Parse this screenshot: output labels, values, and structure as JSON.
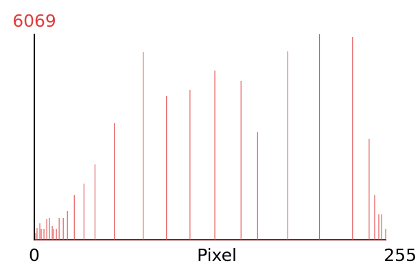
{
  "chart_data": {
    "type": "spike",
    "xlabel": "Pixel",
    "x": [
      1,
      2,
      4,
      5,
      7,
      9,
      11,
      13,
      14,
      16,
      18,
      21,
      24,
      29,
      36,
      44,
      58,
      79,
      96,
      113,
      131,
      150,
      162,
      184,
      207,
      231,
      243,
      247,
      250,
      252,
      255
    ],
    "values": [
      202,
      344,
      486,
      324,
      324,
      607,
      647,
      405,
      324,
      324,
      647,
      647,
      850,
      1315,
      1659,
      2225,
      3439,
      5543,
      4248,
      4430,
      4997,
      4693,
      3176,
      5563,
      6069,
      5988,
      2974,
      1315,
      749,
      749,
      324
    ],
    "color": "#e03c3c",
    "xlim": [
      0,
      255
    ],
    "xticks": [
      0,
      255
    ],
    "ylim": [
      0,
      6069
    ],
    "yticks": [
      6069
    ]
  }
}
